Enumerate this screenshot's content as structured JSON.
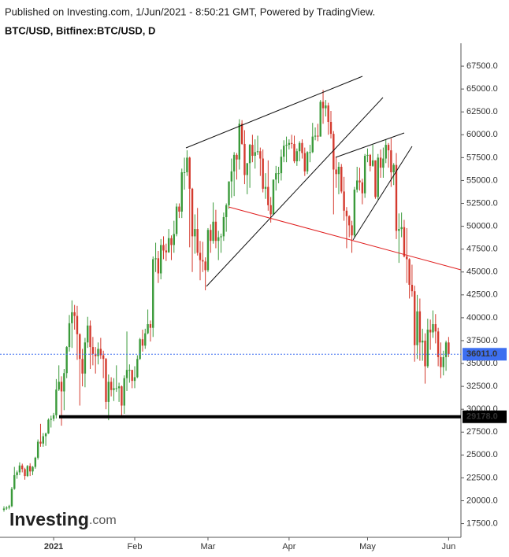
{
  "chart_data": {
    "type": "candlestick",
    "header": "Published on Investing.com, 1/Jun/2021 - 8:50:21 GMT, Powered by TradingView.",
    "title": "BTC/USD, Bitfinex:BTC/USD, D",
    "categories": [
      null,
      null,
      null,
      null,
      null,
      null,
      null,
      null,
      null,
      null,
      null,
      null,
      null,
      null,
      null,
      null,
      null,
      null,
      null,
      "2021",
      null,
      null,
      null,
      null,
      null,
      null,
      null,
      null,
      null,
      null,
      null,
      null,
      null,
      null,
      null,
      null,
      null,
      null,
      null,
      null,
      null,
      null,
      null,
      null,
      null,
      null,
      null,
      null,
      null,
      null,
      "Feb",
      null,
      null,
      null,
      null,
      null,
      null,
      null,
      null,
      null,
      null,
      null,
      null,
      null,
      null,
      null,
      null,
      null,
      null,
      null,
      null,
      null,
      null,
      null,
      null,
      null,
      null,
      null,
      "Mar",
      null,
      null,
      null,
      null,
      null,
      null,
      null,
      null,
      null,
      null,
      null,
      null,
      null,
      null,
      null,
      null,
      null,
      null,
      null,
      null,
      null,
      null,
      null,
      null,
      null,
      null,
      null,
      null,
      null,
      null,
      "Apr",
      null,
      null,
      null,
      null,
      null,
      null,
      null,
      null,
      null,
      null,
      null,
      null,
      null,
      null,
      null,
      null,
      null,
      null,
      null,
      null,
      null,
      null,
      null,
      null,
      null,
      null,
      null,
      null,
      null,
      "May",
      null,
      null,
      null,
      null,
      null,
      null,
      null,
      null,
      null,
      null,
      null,
      null,
      null,
      null,
      null,
      null,
      null,
      null,
      null,
      null,
      null,
      null,
      null,
      null,
      null,
      null,
      null,
      null,
      null,
      null,
      "Jun"
    ],
    "open": [
      19000,
      19150,
      19250,
      19400,
      21300,
      22800,
      23100,
      23850,
      23450,
      22700,
      23800,
      23200,
      23700,
      24700,
      26450,
      26250,
      27050,
      27350,
      28850,
      28950,
      29350,
      32150,
      33000,
      31950,
      33950,
      36800,
      39400,
      40600,
      40200,
      38200,
      35500,
      33900,
      37300,
      39150,
      36800,
      36050,
      35800,
      36600,
      35900,
      35500,
      30800,
      33000,
      32100,
      32300,
      32300,
      32500,
      30400,
      33400,
      34300,
      34300,
      33100,
      33500,
      35500,
      37650,
      36950,
      38300,
      39300,
      38900,
      46400,
      46500,
      44850,
      47950,
      47350,
      47150,
      48700,
      47950,
      49150,
      52150,
      51600,
      55900,
      55900,
      57500,
      54100,
      48900,
      49700,
      47100,
      46300,
      46150,
      45200,
      49600,
      48400,
      50500,
      48400,
      48800,
      48900,
      51000,
      52300,
      54900,
      56000,
      57800,
      57300,
      61200,
      59000,
      55600,
      56900,
      58900,
      57700,
      58100,
      58200,
      57400,
      54100,
      54300,
      52300,
      51300,
      55100,
      55800,
      55800,
      57600,
      58800,
      58900,
      59100,
      59000,
      57100,
      58200,
      59100,
      58000,
      56000,
      58100,
      58100,
      59800,
      59900,
      59800,
      63600,
      62900,
      63200,
      61400,
      60100,
      56200,
      55700,
      56500,
      53800,
      51700,
      51100,
      50100,
      49000,
      54000,
      55000,
      54800,
      53600,
      57700,
      57800,
      56600,
      57200,
      53200,
      57500,
      56400,
      57400,
      58900,
      58300,
      55900,
      56700,
      49500,
      49700,
      49900,
      46700,
      46400,
      43600,
      42900,
      37000,
      40700,
      37300,
      37500,
      34700,
      38700,
      38400,
      39300,
      38500,
      35700,
      34600,
      35700,
      37300
    ],
    "high": [
      19400,
      19400,
      19550,
      21500,
      23700,
      23300,
      24200,
      24050,
      23600,
      23900,
      24100,
      23800,
      24800,
      26700,
      28400,
      27400,
      27450,
      29000,
      29300,
      29600,
      33300,
      34800,
      33600,
      34400,
      36900,
      40300,
      41900,
      41400,
      41300,
      38300,
      36600,
      37800,
      40100,
      39700,
      37900,
      36800,
      37300,
      37800,
      36400,
      35600,
      33800,
      33500,
      33400,
      34800,
      32900,
      32600,
      33700,
      38500,
      34900,
      34300,
      34700,
      35900,
      37800,
      38700,
      38800,
      40900,
      39700,
      46700,
      48200,
      47300,
      48600,
      48900,
      48100,
      49700,
      49000,
      50600,
      52500,
      52500,
      56300,
      57500,
      58300,
      57600,
      54200,
      51300,
      52000,
      48400,
      48300,
      46600,
      49800,
      50200,
      52600,
      51800,
      49500,
      49200,
      51500,
      52500,
      54900,
      57400,
      58100,
      58000,
      61700,
      61600,
      60500,
      56900,
      59000,
      60000,
      59500,
      59900,
      58600,
      58400,
      55800,
      57200,
      53200,
      55100,
      56600,
      56500,
      58400,
      59400,
      59800,
      59500,
      60000,
      59900,
      58500,
      59300,
      59500,
      58600,
      58200,
      58900,
      61300,
      60800,
      61200,
      63800,
      64900,
      63800,
      63500,
      62600,
      60400,
      57600,
      57000,
      56800,
      55400,
      52100,
      51200,
      50600,
      54300,
      56500,
      56400,
      55200,
      57900,
      58500,
      57900,
      58900,
      57200,
      57900,
      58400,
      58600,
      59500,
      59100,
      59600,
      56900,
      58000,
      51400,
      51500,
      50700,
      49800,
      46500,
      45800,
      43500,
      42500,
      42100,
      38800,
      38300,
      39900,
      39800,
      40800,
      40400,
      38900,
      37300,
      36400,
      37500,
      37900
    ],
    "low": [
      18800,
      19000,
      19050,
      19300,
      21200,
      22400,
      22800,
      23100,
      22300,
      22600,
      22700,
      22800,
      23500,
      24500,
      25900,
      25900,
      26000,
      27300,
      28000,
      28700,
      29000,
      32000,
      28200,
      29900,
      33400,
      36300,
      36700,
      38700,
      35400,
      30400,
      32500,
      32400,
      36700,
      34400,
      34800,
      33900,
      34900,
      35500,
      33400,
      30000,
      28800,
      31400,
      30900,
      31900,
      30800,
      29200,
      29500,
      32000,
      32900,
      32300,
      32300,
      33400,
      35400,
      36300,
      36600,
      38200,
      37400,
      37900,
      45000,
      43800,
      44200,
      46400,
      46200,
      47100,
      46300,
      47100,
      48900,
      50900,
      50900,
      54000,
      55500,
      47700,
      45000,
      47000,
      46800,
      44100,
      45000,
      43000,
      45000,
      47100,
      48100,
      47600,
      46300,
      47100,
      48400,
      49400,
      51900,
      53100,
      53300,
      55100,
      56200,
      58900,
      54600,
      53500,
      54200,
      57000,
      56300,
      57800,
      55500,
      53700,
      53000,
      51700,
      50400,
      51300,
      53900,
      54700,
      55000,
      57000,
      57000,
      58400,
      58500,
      56900,
      56600,
      57100,
      57400,
      55500,
      55700,
      57000,
      58000,
      59400,
      59300,
      59800,
      61200,
      62000,
      60000,
      59600,
      51300,
      54200,
      53500,
      53600,
      50600,
      47600,
      48800,
      47100,
      48800,
      53700,
      53900,
      52400,
      53100,
      57000,
      56000,
      56500,
      53000,
      52900,
      55300,
      55300,
      56900,
      56400,
      54300,
      54500,
      48600,
      46000,
      48800,
      46600,
      43800,
      42100,
      42300,
      35200,
      35500,
      35300,
      35300,
      32800,
      34500,
      36500,
      37800,
      37200,
      34700,
      33400,
      33700,
      34200,
      35700
    ],
    "close": [
      19150,
      19250,
      19400,
      21300,
      22800,
      23100,
      23850,
      23450,
      22700,
      23800,
      23200,
      23700,
      24700,
      26450,
      26250,
      27050,
      27350,
      28850,
      28950,
      29350,
      32150,
      33000,
      31950,
      33950,
      36800,
      39400,
      40600,
      40200,
      38200,
      35500,
      33900,
      37300,
      39150,
      36800,
      36050,
      35800,
      36600,
      35900,
      35500,
      30800,
      33000,
      32100,
      32300,
      32300,
      32500,
      30400,
      33400,
      34300,
      34300,
      33100,
      33500,
      35500,
      37650,
      36950,
      38300,
      39300,
      38900,
      46400,
      46500,
      44850,
      47950,
      47350,
      47150,
      48700,
      47950,
      49150,
      52150,
      51600,
      55900,
      55900,
      57500,
      54100,
      48900,
      49700,
      47100,
      46300,
      46150,
      45200,
      49600,
      48400,
      50500,
      48400,
      48800,
      48900,
      51000,
      52300,
      54900,
      56000,
      57800,
      57300,
      61200,
      59000,
      55600,
      56900,
      58900,
      57700,
      58100,
      58200,
      57400,
      54100,
      54300,
      52300,
      51300,
      55100,
      55800,
      55800,
      57600,
      58800,
      58900,
      59100,
      59000,
      57100,
      58200,
      59100,
      58000,
      56000,
      58100,
      58100,
      59800,
      59900,
      59800,
      63600,
      62900,
      63200,
      61400,
      60100,
      56200,
      55700,
      56500,
      53800,
      51700,
      51100,
      50100,
      49000,
      54000,
      55000,
      54800,
      53600,
      57700,
      57800,
      56600,
      57200,
      53200,
      57500,
      56400,
      57400,
      58900,
      58300,
      55900,
      56700,
      49500,
      49700,
      49900,
      46700,
      46400,
      43600,
      42900,
      37000,
      40700,
      37300,
      37500,
      34700,
      38700,
      38400,
      39300,
      38500,
      35700,
      34600,
      35700,
      37300,
      36011
    ],
    "up_color": "#3a9a3a",
    "down_color": "#d43a2e",
    "ylim": [
      16000,
      70000
    ],
    "yticks": [
      {
        "value": 17500,
        "label": "17500.0"
      },
      {
        "value": 20000,
        "label": "20000.0"
      },
      {
        "value": 22500,
        "label": "22500.0"
      },
      {
        "value": 25000,
        "label": "25000.0"
      },
      {
        "value": 27500,
        "label": "27500.0"
      },
      {
        "value": 30000,
        "label": "30000.0"
      },
      {
        "value": 32500,
        "label": "32500.0"
      },
      {
        "value": 35000,
        "label": "35000.0"
      },
      {
        "value": 37500,
        "label": "37500.0"
      },
      {
        "value": 40000,
        "label": "40000.0"
      },
      {
        "value": 42500,
        "label": "42500.0"
      },
      {
        "value": 45000,
        "label": "45000.0"
      },
      {
        "value": 47500,
        "label": "47500.0"
      },
      {
        "value": 50000,
        "label": "50000.0"
      },
      {
        "value": 52500,
        "label": "52500.0"
      },
      {
        "value": 55000,
        "label": "55000.0"
      },
      {
        "value": 57500,
        "label": "57500.0"
      },
      {
        "value": 60000,
        "label": "60000.0"
      },
      {
        "value": 62500,
        "label": "62500.0"
      },
      {
        "value": 65000,
        "label": "65000.0"
      },
      {
        "value": 67500,
        "label": "67500.0"
      }
    ],
    "levels": [
      {
        "value": 29178,
        "label": "29178.0",
        "color": "#000000"
      }
    ],
    "last_price": {
      "value": 36011,
      "label": "36011.0",
      "color": "#3d6ff0"
    },
    "watermark": {
      "brand": "Investing",
      "suffix": ".com"
    }
  }
}
